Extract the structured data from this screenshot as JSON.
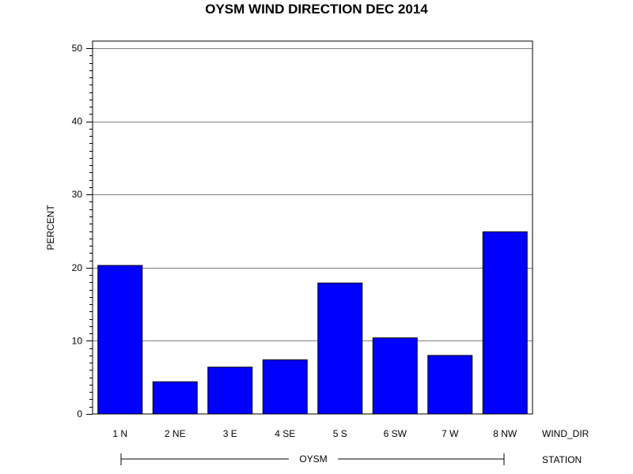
{
  "chart_data": {
    "type": "bar",
    "title": "OYSM WIND DIRECTION DEC 2014",
    "ylabel": "PERCENT",
    "xlabel": "WIND_DIR",
    "group_axis_label": "STATION",
    "group_label": "OYSM",
    "categories": [
      "1 N",
      "2 NE",
      "3 E",
      "4 SE",
      "5 S",
      "6 SW",
      "7 W",
      "8 NW"
    ],
    "values": [
      20.3,
      4.4,
      6.4,
      7.4,
      17.9,
      10.4,
      8.0,
      24.9
    ],
    "ylim": [
      0,
      50
    ],
    "yticks": [
      0,
      10,
      20,
      30,
      40,
      50
    ],
    "grid": true,
    "bar_color": "#0000ff"
  }
}
